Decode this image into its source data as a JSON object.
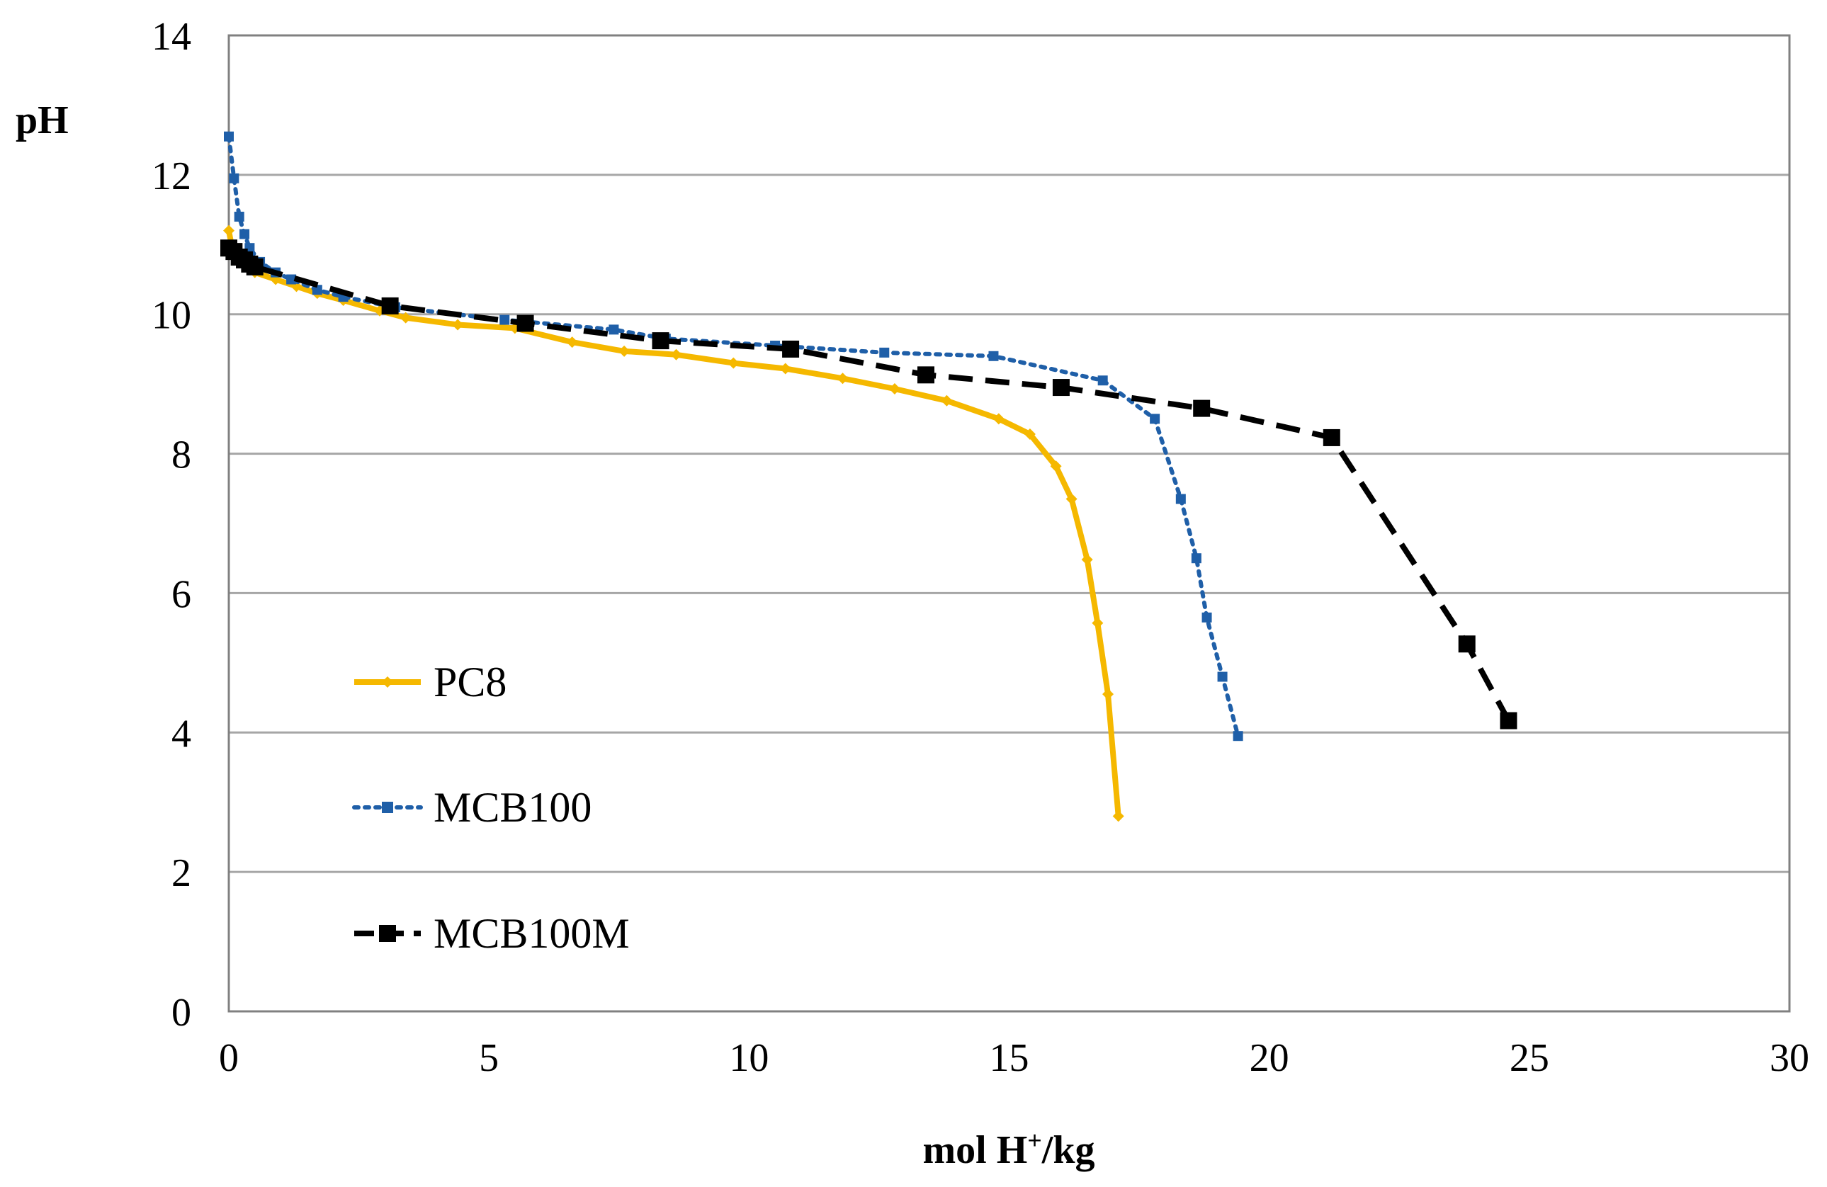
{
  "chart_data": {
    "type": "line",
    "title": "",
    "xlabel": {
      "prefix": "mol H",
      "superscript": "+",
      "suffix": "/kg"
    },
    "ylabel": "pH",
    "xlim": [
      0,
      30
    ],
    "ylim": [
      0,
      14
    ],
    "xticks": [
      0,
      5,
      10,
      15,
      20,
      25,
      30
    ],
    "yticks": [
      0,
      2,
      4,
      6,
      8,
      10,
      12,
      14
    ],
    "grid": {
      "horizontal": true,
      "vertical": false
    },
    "legend_position": "left",
    "series": [
      {
        "name": "PC8",
        "color": "#f5b800",
        "line_style": "solid",
        "marker": "diamond",
        "x": [
          0,
          0.05,
          0.1,
          0.2,
          0.3,
          0.5,
          0.9,
          1.3,
          1.7,
          2.2,
          2.9,
          3.4,
          4.4,
          5.5,
          6.6,
          7.6,
          8.6,
          9.7,
          10.7,
          11.8,
          12.8,
          13.8,
          14.8,
          15.4,
          15.9,
          16.2,
          16.5,
          16.7,
          16.9,
          17.1
        ],
        "y": [
          11.2,
          11.0,
          10.9,
          10.8,
          10.7,
          10.6,
          10.5,
          10.4,
          10.3,
          10.2,
          10.05,
          9.95,
          9.85,
          9.8,
          9.6,
          9.47,
          9.42,
          9.3,
          9.22,
          9.08,
          8.93,
          8.76,
          8.5,
          8.28,
          7.82,
          7.35,
          6.48,
          5.57,
          4.55,
          2.8
        ]
      },
      {
        "name": "MCB100",
        "color": "#1f5fa8",
        "line_style": "dotted",
        "marker": "square",
        "x": [
          0,
          0.1,
          0.2,
          0.3,
          0.4,
          0.6,
          0.9,
          1.2,
          1.7,
          2.2,
          3.2,
          5.3,
          7.4,
          8.4,
          10.5,
          12.6,
          14.7,
          16.8,
          17.8,
          18.3,
          18.6,
          18.8,
          19.1,
          19.4
        ],
        "y": [
          12.55,
          11.95,
          11.4,
          11.15,
          10.95,
          10.75,
          10.6,
          10.5,
          10.35,
          10.25,
          10.1,
          9.92,
          9.78,
          9.65,
          9.55,
          9.45,
          9.4,
          9.05,
          8.5,
          7.35,
          6.5,
          5.65,
          4.8,
          3.95
        ]
      },
      {
        "name": "MCB100M",
        "color": "#000000",
        "line_style": "dashed",
        "marker": "square",
        "x": [
          0,
          0.1,
          0.2,
          0.3,
          0.4,
          0.5,
          3.1,
          5.7,
          8.3,
          10.8,
          13.4,
          16.0,
          18.7,
          21.2,
          23.8,
          24.6
        ],
        "y": [
          10.95,
          10.9,
          10.82,
          10.78,
          10.72,
          10.68,
          10.12,
          9.87,
          9.62,
          9.5,
          9.13,
          8.95,
          8.65,
          8.23,
          5.27,
          4.17
        ]
      }
    ]
  }
}
